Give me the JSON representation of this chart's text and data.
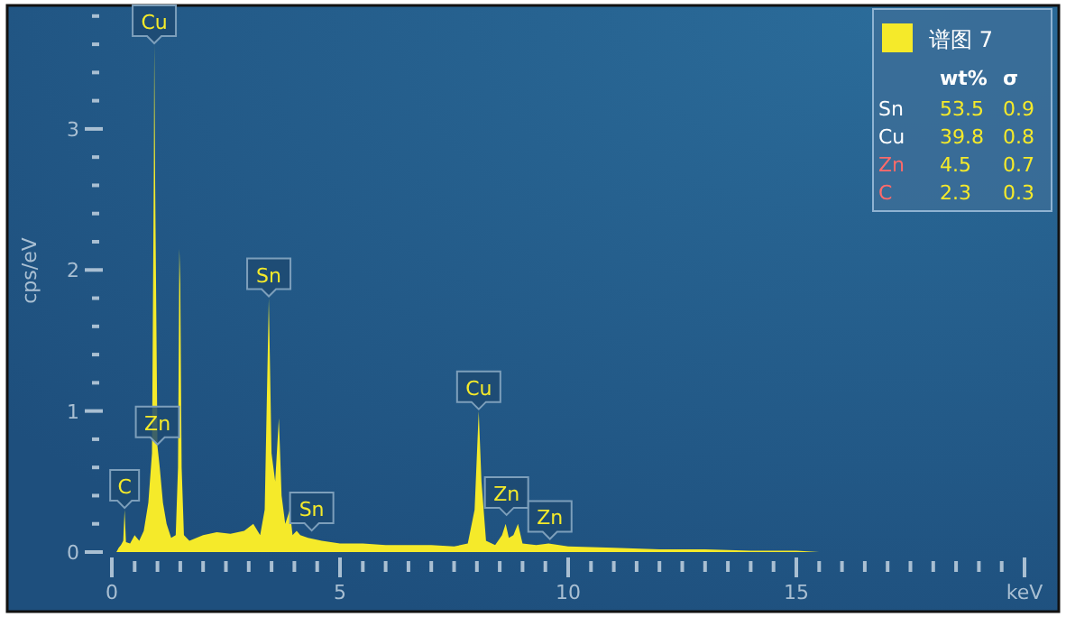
{
  "chart_data": {
    "type": "area",
    "ylabel": "cps/eV",
    "xlim": [
      0,
      20
    ],
    "ylim": [
      0,
      3.85
    ],
    "xticks": [
      0,
      {
        "value": 0.5,
        "label": null
      },
      {
        "value": 1,
        "label": null
      },
      {
        "value": 1.5,
        "label": null
      },
      {
        "value": 2,
        "label": null
      },
      {
        "value": 2.5,
        "label": null
      },
      {
        "value": 3,
        "label": null
      },
      {
        "value": 3.5,
        "label": null
      },
      {
        "value": 4,
        "label": null
      },
      {
        "value": 4.5,
        "label": null
      },
      5,
      {
        "value": 5.5,
        "label": null
      },
      {
        "value": 6,
        "label": null
      },
      {
        "value": 6.5,
        "label": null
      },
      {
        "value": 7,
        "label": null
      },
      {
        "value": 7.5,
        "label": null
      },
      {
        "value": 8,
        "label": null
      },
      {
        "value": 8.5,
        "label": null
      },
      {
        "value": 9,
        "label": null
      },
      {
        "value": 9.5,
        "label": null
      },
      10,
      {
        "value": 10.5,
        "label": null
      },
      {
        "value": 11,
        "label": null
      },
      {
        "value": 11.5,
        "label": null
      },
      {
        "value": 12,
        "label": null
      },
      {
        "value": 12.5,
        "label": null
      },
      {
        "value": 13,
        "label": null
      },
      {
        "value": 13.5,
        "label": null
      },
      {
        "value": 14,
        "label": null
      },
      {
        "value": 14.5,
        "label": null
      },
      15,
      {
        "value": 15.5,
        "label": null
      },
      {
        "value": 16,
        "label": null
      },
      {
        "value": 16.5,
        "label": null
      },
      {
        "value": 17,
        "label": null
      },
      {
        "value": 17.5,
        "label": null
      },
      {
        "value": 18,
        "label": null
      },
      {
        "value": 18.5,
        "label": null
      },
      {
        "value": 19,
        "label": null
      },
      {
        "value": 19.5,
        "label": null
      },
      {
        "value": 20,
        "label": "keV"
      }
    ],
    "yticks": [
      0,
      {
        "value": 0.2,
        "label": null
      },
      {
        "value": 0.4,
        "label": null
      },
      {
        "value": 0.6,
        "label": null
      },
      {
        "value": 0.8,
        "label": null
      },
      1,
      {
        "value": 1.2,
        "label": null
      },
      {
        "value": 1.4,
        "label": null
      },
      {
        "value": 1.6,
        "label": null
      },
      {
        "value": 1.8,
        "label": null
      },
      2,
      {
        "value": 2.2,
        "label": null
      },
      {
        "value": 2.4,
        "label": null
      },
      {
        "value": 2.6,
        "label": null
      },
      {
        "value": 2.8,
        "label": null
      },
      3,
      {
        "value": 3.2,
        "label": null
      },
      {
        "value": 3.4,
        "label": null
      },
      {
        "value": 3.6,
        "label": null
      },
      {
        "value": 3.8,
        "label": null
      }
    ],
    "legend": "top right",
    "series": [
      {
        "name": "谱图 7",
        "color": "#f5ea2a",
        "x": [
          0.1,
          0.15,
          0.2,
          0.25,
          0.28,
          0.31,
          0.4,
          0.5,
          0.6,
          0.7,
          0.8,
          0.88,
          0.92,
          0.93,
          0.95,
          1.0,
          1.05,
          1.12,
          1.2,
          1.3,
          1.4,
          1.45,
          1.48,
          1.5,
          1.53,
          1.58,
          1.7,
          2.0,
          2.3,
          2.6,
          2.9,
          3.1,
          3.25,
          3.35,
          3.44,
          3.5,
          3.58,
          3.66,
          3.72,
          3.8,
          3.9,
          3.96,
          4.05,
          4.13,
          4.3,
          4.6,
          5.0,
          5.5,
          6.0,
          6.5,
          7.0,
          7.5,
          7.8,
          7.95,
          8.04,
          8.1,
          8.2,
          8.4,
          8.55,
          8.63,
          8.7,
          8.8,
          8.9,
          9.0,
          9.3,
          9.57,
          10,
          11,
          12,
          13,
          14,
          15,
          15.5
        ],
        "values": [
          0,
          0.03,
          0.05,
          0.08,
          0.3,
          0.07,
          0.06,
          0.12,
          0.08,
          0.15,
          0.35,
          0.7,
          2.7,
          3.6,
          2.6,
          0.75,
          0.6,
          0.35,
          0.2,
          0.1,
          0.12,
          0.6,
          2.15,
          1.9,
          0.6,
          0.12,
          0.08,
          0.12,
          0.14,
          0.13,
          0.15,
          0.2,
          0.12,
          0.3,
          1.8,
          0.7,
          0.5,
          0.95,
          0.4,
          0.2,
          0.3,
          0.12,
          0.15,
          0.12,
          0.1,
          0.08,
          0.06,
          0.06,
          0.05,
          0.05,
          0.05,
          0.04,
          0.06,
          0.3,
          1.0,
          0.5,
          0.08,
          0.05,
          0.12,
          0.2,
          0.1,
          0.12,
          0.2,
          0.06,
          0.05,
          0.06,
          0.04,
          0.03,
          0.02,
          0.02,
          0.01,
          0.01,
          0
        ]
      }
    ],
    "annotations": [
      {
        "text": "Cu",
        "x": 0.93,
        "y": 3.6
      },
      {
        "text": "Zn",
        "x": 1.0,
        "y": 0.75
      },
      {
        "text": "C",
        "x": 0.28,
        "y": 0.3
      },
      {
        "text": "Sn",
        "x": 3.44,
        "y": 1.8
      },
      {
        "text": "Sn",
        "x": 4.38,
        "y": 0.14
      },
      {
        "text": "Cu",
        "x": 8.04,
        "y": 1.0
      },
      {
        "text": "Zn",
        "x": 8.65,
        "y": 0.25
      },
      {
        "text": "Zn",
        "x": 9.6,
        "y": 0.08
      },
      "wt%",
      "σ",
      "Sn",
      "53.5",
      "0.9",
      "Cu",
      "39.8",
      "0.8",
      "Zn",
      "4.5",
      "0.7",
      "C",
      "2.3",
      "0.3"
    ]
  }
}
